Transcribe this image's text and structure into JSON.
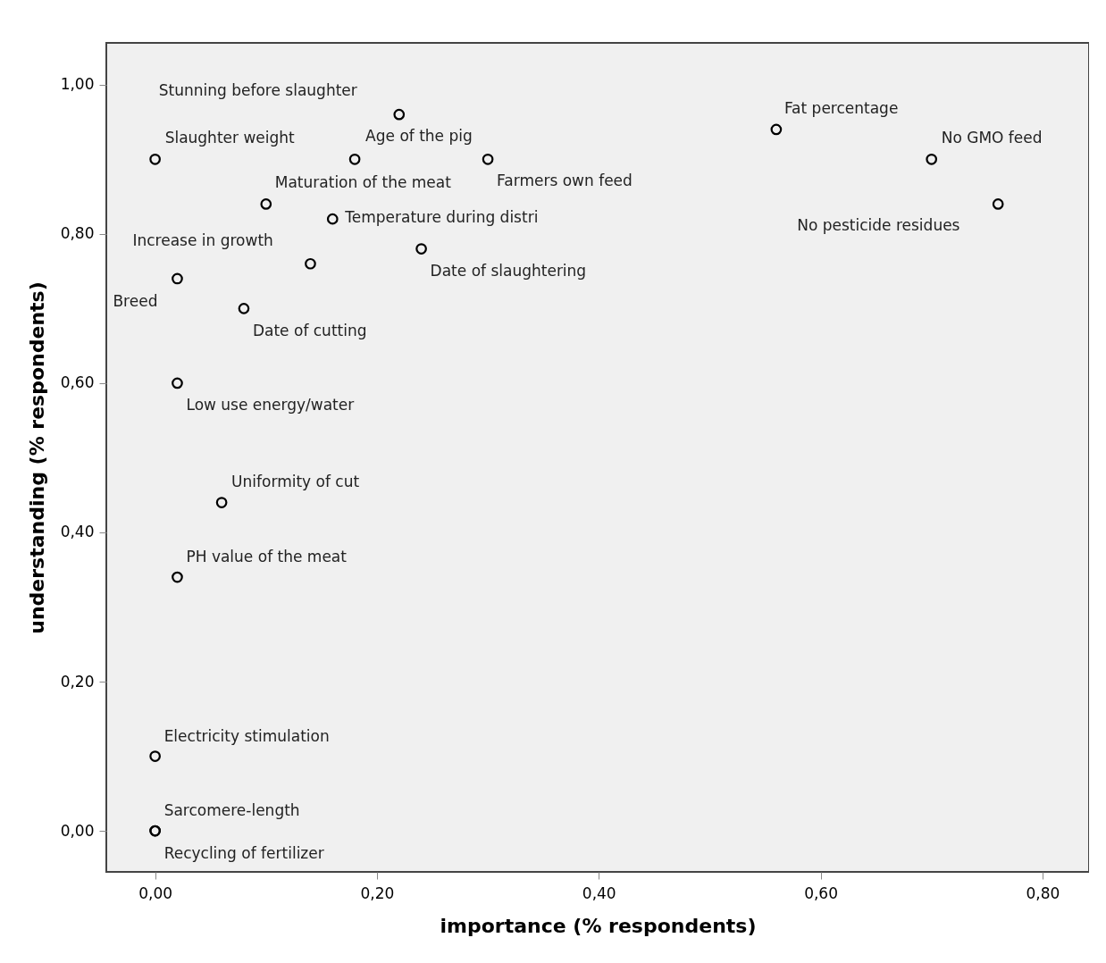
{
  "chart_data": {
    "type": "scatter",
    "xlabel": "importance (% respondents)",
    "ylabel": "understanding (% respondents)",
    "x": [
      0.22,
      0,
      0.18,
      0.3,
      0.56,
      0.7,
      0.76,
      0.1,
      0.16,
      0.14,
      0.24,
      0.02,
      0.08,
      0.02,
      0.06,
      0.02,
      0,
      0,
      0
    ],
    "series": [
      {
        "color": "#000000",
        "values": [
          0.96,
          0.9,
          0.9,
          0.9,
          0.94,
          0.9,
          0.84,
          0.84,
          0.82,
          0.76,
          0.78,
          0.74,
          0.7,
          0.6,
          0.44,
          0.34,
          0.1,
          0,
          0
        ]
      }
    ],
    "marker": "circle",
    "grid": false,
    "xlim": [
      -0.044,
      0.842
    ],
    "ylim": [
      -0.055,
      1.056
    ],
    "xticks": [
      {
        "value": 0,
        "label": "0,00"
      },
      {
        "value": 0.2,
        "label": "0,20"
      },
      {
        "value": 0.4,
        "label": "0,40"
      },
      {
        "value": 0.6,
        "label": "0,60"
      },
      {
        "value": 0.8,
        "label": "0,80"
      }
    ],
    "yticks": [
      {
        "value": 0,
        "label": "0,00"
      },
      {
        "value": 0.2,
        "label": "0,20"
      },
      {
        "value": 0.4,
        "label": "0,40"
      },
      {
        "value": 0.6,
        "label": "0,60"
      },
      {
        "value": 0.8,
        "label": "0,80"
      },
      {
        "value": 1.0,
        "label": "1,00"
      }
    ],
    "annotations": [
      {
        "text": "Stunning before slaughter",
        "x": 0.22,
        "y": 0.96
      },
      {
        "text": "Slaughter weight",
        "x": 0,
        "y": 0.9
      },
      {
        "text": "Age of the pig",
        "x": 0.18,
        "y": 0.9
      },
      {
        "text": "Farmers own feed",
        "x": 0.3,
        "y": 0.9
      },
      {
        "text": "Fat percentage",
        "x": 0.56,
        "y": 0.94
      },
      {
        "text": "No GMO feed",
        "x": 0.7,
        "y": 0.9
      },
      {
        "text": "No pesticide residues",
        "x": 0.76,
        "y": 0.84
      },
      {
        "text": "Maturation of the meat",
        "x": 0.1,
        "y": 0.84
      },
      {
        "text": "Temperature during distri",
        "x": 0.16,
        "y": 0.82
      },
      {
        "text": "Increase in growth",
        "x": 0.14,
        "y": 0.76
      },
      {
        "text": "Date of slaughtering",
        "x": 0.24,
        "y": 0.78
      },
      {
        "text": "Breed",
        "x": 0.02,
        "y": 0.74
      },
      {
        "text": "Date of cutting",
        "x": 0.08,
        "y": 0.7
      },
      {
        "text": "Low use energy/water",
        "x": 0.02,
        "y": 0.6
      },
      {
        "text": "Uniformity of cut",
        "x": 0.06,
        "y": 0.44
      },
      {
        "text": "PH value of the meat",
        "x": 0.02,
        "y": 0.34
      },
      {
        "text": "Electricity stimulation",
        "x": 0,
        "y": 0.1
      },
      {
        "text": "Sarcomere-length",
        "x": 0,
        "y": 0
      },
      {
        "text": "Recycling of fertilizer",
        "x": 0,
        "y": 0
      }
    ]
  }
}
